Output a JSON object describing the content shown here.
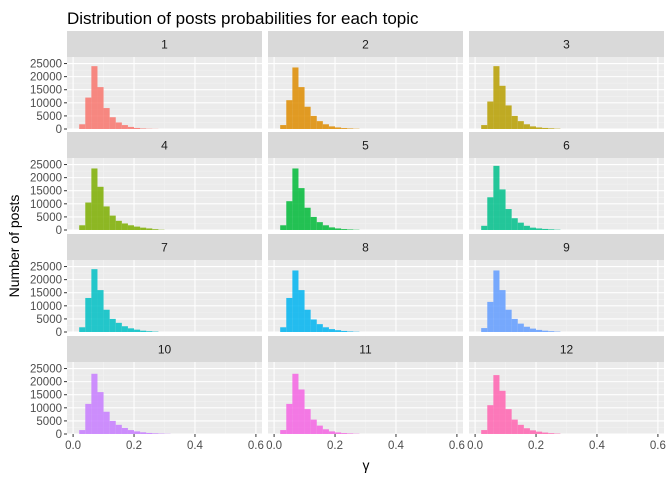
{
  "chart_data": {
    "type": "bar",
    "title": "Distribution of posts probabilities for each topic",
    "xlabel": "γ",
    "ylabel": "Number of posts",
    "xlim": [
      -0.02,
      0.62
    ],
    "ylim": [
      0,
      27500
    ],
    "x_ticks": [
      0.0,
      0.2,
      0.4,
      0.6
    ],
    "x_tick_labels": [
      "0.0",
      "0.2",
      "0.4",
      "0.6"
    ],
    "y_ticks": [
      0,
      5000,
      10000,
      15000,
      20000,
      25000
    ],
    "y_tick_labels": [
      "0",
      "5000",
      "10000",
      "15000",
      "20000",
      "25000"
    ],
    "grid": true,
    "bin_width": 0.02,
    "bin_starts": [
      0.0,
      0.02,
      0.04,
      0.06,
      0.08,
      0.1,
      0.12,
      0.14,
      0.16,
      0.18,
      0.2,
      0.22,
      0.24,
      0.26,
      0.28,
      0.3,
      0.32
    ],
    "panels": [
      {
        "label": "1",
        "color": "#F8766D",
        "values": [
          0,
          1800,
          12000,
          24000,
          16000,
          8000,
          4500,
          2500,
          1500,
          800,
          400,
          200,
          100,
          50,
          0,
          0,
          0
        ]
      },
      {
        "label": "2",
        "color": "#DE8C00",
        "values": [
          0,
          1500,
          11000,
          23500,
          16000,
          8500,
          5000,
          3000,
          1800,
          1000,
          600,
          350,
          200,
          100,
          0,
          0,
          0
        ]
      },
      {
        "label": "3",
        "color": "#B79F00",
        "values": [
          0,
          1500,
          10500,
          24000,
          16500,
          9000,
          5000,
          3000,
          1800,
          1000,
          600,
          400,
          250,
          120,
          0,
          0,
          0
        ]
      },
      {
        "label": "4",
        "color": "#7CAE00",
        "values": [
          0,
          1800,
          10500,
          23500,
          16500,
          9000,
          5500,
          3500,
          2500,
          1800,
          1300,
          900,
          600,
          300,
          100,
          0,
          0
        ]
      },
      {
        "label": "5",
        "color": "#00BA38",
        "values": [
          0,
          1800,
          11000,
          23500,
          16000,
          8500,
          5000,
          3000,
          1800,
          1000,
          600,
          350,
          200,
          100,
          0,
          0,
          0
        ]
      },
      {
        "label": "6",
        "color": "#00C08B",
        "values": [
          0,
          1600,
          12500,
          24500,
          15500,
          8000,
          4500,
          2800,
          1600,
          900,
          600,
          400,
          250,
          120,
          0,
          0,
          0
        ]
      },
      {
        "label": "7",
        "color": "#00BFC4",
        "values": [
          0,
          1800,
          13000,
          24000,
          16000,
          8500,
          5000,
          3500,
          2200,
          1400,
          900,
          500,
          300,
          150,
          0,
          0,
          0
        ]
      },
      {
        "label": "8",
        "color": "#00B4F0",
        "values": [
          0,
          1800,
          13000,
          23500,
          16000,
          8500,
          4800,
          3000,
          1800,
          1100,
          700,
          400,
          200,
          100,
          0,
          0,
          0
        ]
      },
      {
        "label": "9",
        "color": "#619CFF",
        "values": [
          0,
          1500,
          11500,
          23500,
          16000,
          8500,
          5000,
          3200,
          2000,
          1300,
          800,
          500,
          300,
          150,
          0,
          0,
          0
        ]
      },
      {
        "label": "10",
        "color": "#C77CFF",
        "values": [
          0,
          1500,
          11500,
          23000,
          16000,
          8500,
          5000,
          3500,
          2300,
          1500,
          1000,
          650,
          400,
          250,
          150,
          80,
          0
        ]
      },
      {
        "label": "11",
        "color": "#F564E3",
        "values": [
          0,
          1500,
          11500,
          23000,
          17000,
          9500,
          5500,
          3200,
          1800,
          1000,
          600,
          350,
          200,
          100,
          0,
          0,
          0
        ]
      },
      {
        "label": "12",
        "color": "#FF64B0",
        "values": [
          0,
          1500,
          11000,
          22500,
          16500,
          9500,
          5500,
          3500,
          2200,
          1400,
          900,
          550,
          300,
          150,
          0,
          0,
          0
        ]
      }
    ]
  },
  "colors": {
    "panel_background": "#EBEBEB",
    "strip_background": "#D9D9D9",
    "grid_major": "#FFFFFF",
    "grid_minor": "#F2F2F2"
  }
}
